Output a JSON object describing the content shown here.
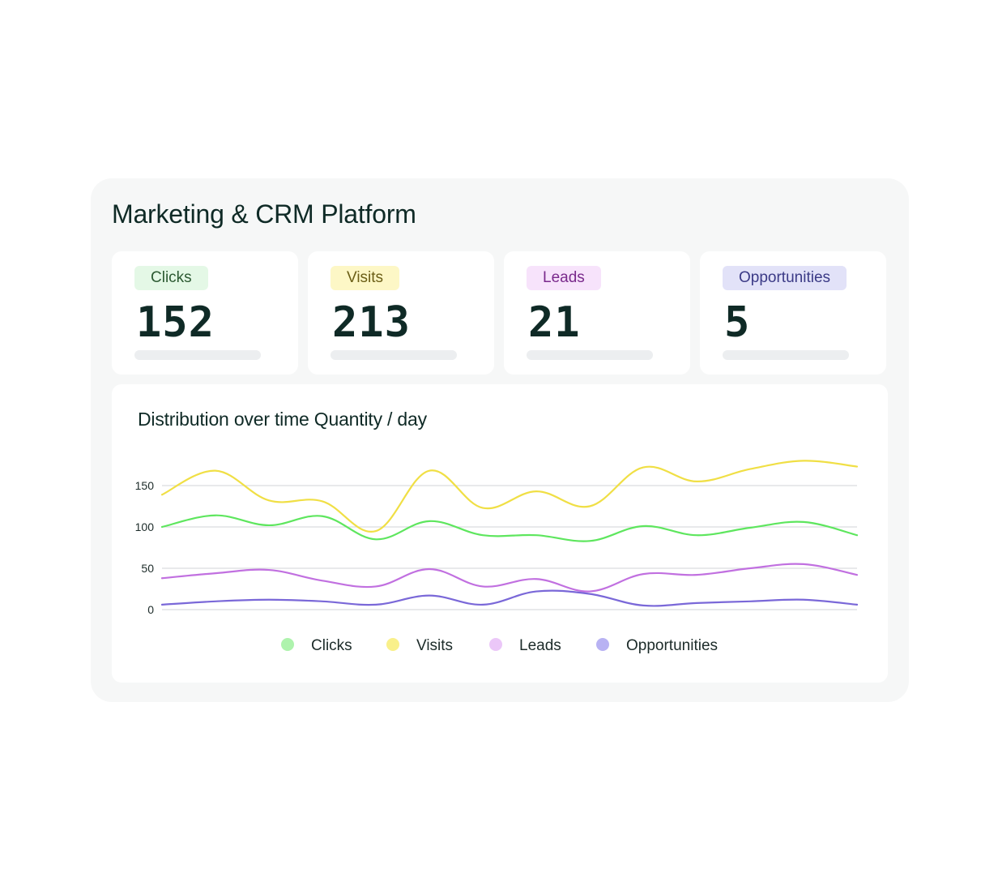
{
  "panel": {
    "title": "Marketing & CRM Platform"
  },
  "metrics": [
    {
      "label": "Clicks",
      "value": "152",
      "badge_bg": "#e4f8e6",
      "badge_fg": "#2c5a32"
    },
    {
      "label": "Visits",
      "value": "213",
      "badge_bg": "#fdf7c6",
      "badge_fg": "#6b5e16"
    },
    {
      "label": "Leads",
      "value": "21",
      "badge_bg": "#f7e3fb",
      "badge_fg": "#7a2a8c"
    },
    {
      "label": "Opportunities",
      "value": "5",
      "badge_bg": "#e2e2f8",
      "badge_fg": "#3b3a86"
    }
  ],
  "chart_data": {
    "type": "line",
    "title": "Distribution over time Quantity / day",
    "xlabel": "",
    "ylabel": "",
    "ylim": [
      0,
      150
    ],
    "yticks": [
      0,
      50,
      100,
      150
    ],
    "grid": true,
    "legend_position": "bottom",
    "x": [
      0,
      1,
      2,
      3,
      4,
      5,
      6,
      7,
      8,
      9,
      10,
      11,
      12,
      13
    ],
    "series": [
      {
        "name": "Visits",
        "color": "#f0df45",
        "legend_color": "#f9f08a",
        "values": [
          139,
          168,
          132,
          131,
          95,
          168,
          123,
          143,
          125,
          172,
          155,
          170,
          180,
          173
        ]
      },
      {
        "name": "Clicks",
        "color": "#5ee65e",
        "legend_color": "#aef3ad",
        "values": [
          100,
          114,
          102,
          113,
          85,
          107,
          90,
          90,
          83,
          101,
          90,
          99,
          106,
          90
        ]
      },
      {
        "name": "Leads",
        "color": "#c170e0",
        "legend_color": "#ebc7f8",
        "values": [
          38,
          44,
          48,
          35,
          28,
          49,
          28,
          37,
          22,
          43,
          42,
          50,
          55,
          42
        ]
      },
      {
        "name": "Opportunities",
        "color": "#7a68d8",
        "legend_color": "#b8b2f3",
        "values": [
          6,
          10,
          12,
          10,
          6,
          17,
          6,
          22,
          19,
          5,
          8,
          10,
          12,
          6
        ]
      }
    ],
    "legend_order": [
      "Clicks",
      "Visits",
      "Leads",
      "Opportunities"
    ]
  }
}
